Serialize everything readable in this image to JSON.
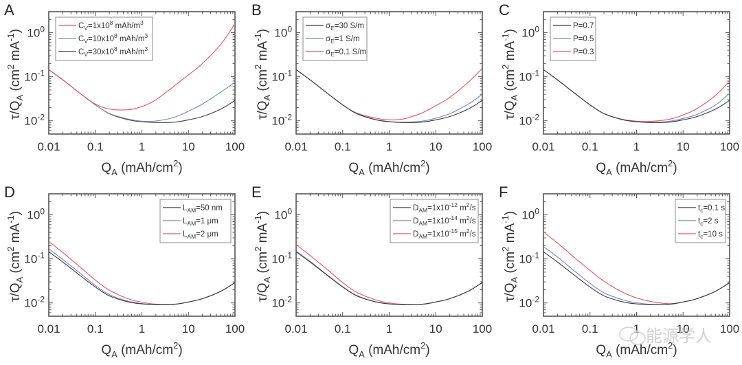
{
  "figure": {
    "watermark": "能源学人",
    "colors": {
      "black": "#3a3a3a",
      "blue": "#6f88c2",
      "red": "#e6535e",
      "axis": "#555555"
    }
  },
  "chart_data": [
    {
      "type": "line",
      "panel": "A",
      "xscale": "log",
      "yscale": "log",
      "xlabel": "Q_A (mAh/cm^2)",
      "ylabel": "τ/Q_A (cm^2 mA^-1)",
      "xlim": [
        0.01,
        100
      ],
      "ylim": [
        0.005,
        3
      ],
      "xticks": [
        "0.01",
        "0.1",
        "1",
        "10",
        "100"
      ],
      "yticks": [
        "10^-2",
        "10^-1",
        "10^0"
      ],
      "legend_position": "top-left",
      "x": [
        0.01,
        0.02,
        0.05,
        0.1,
        0.2,
        0.5,
        1,
        2,
        5,
        10,
        20,
        50,
        100
      ],
      "series": [
        {
          "name": "C_V=1x10^8 mAh/m^3",
          "label_main": "C",
          "label_sub": "V",
          "label_rest": "=1x10",
          "label_sup": "8",
          "label_tail": " mAh/m",
          "label_sup2": "3",
          "color": "red",
          "values": [
            0.145,
            0.085,
            0.04,
            0.024,
            0.0185,
            0.0178,
            0.021,
            0.03,
            0.062,
            0.11,
            0.2,
            0.55,
            1.6
          ]
        },
        {
          "name": "C_V=10x10^8 mAh/m^3",
          "label_main": "C",
          "label_sub": "V",
          "label_rest": "=10x10",
          "label_sup": "8",
          "label_tail": " mAh/m",
          "label_sup2": "3",
          "color": "blue",
          "values": [
            0.145,
            0.085,
            0.04,
            0.023,
            0.0147,
            0.011,
            0.0098,
            0.0099,
            0.012,
            0.0165,
            0.024,
            0.045,
            0.075
          ]
        },
        {
          "name": "C_V=30x10^8 mAh/m^3",
          "label_main": "C",
          "label_sub": "V",
          "label_rest": "=30x10",
          "label_sup": "8",
          "label_tail": " mAh/m",
          "label_sup2": "3",
          "color": "black",
          "values": [
            0.145,
            0.085,
            0.04,
            0.023,
            0.0145,
            0.0106,
            0.0095,
            0.0091,
            0.0093,
            0.0105,
            0.0125,
            0.0185,
            0.029
          ]
        }
      ]
    },
    {
      "type": "line",
      "panel": "B",
      "xscale": "log",
      "yscale": "log",
      "xlabel": "Q_A (mAh/cm^2)",
      "ylabel": "τ/Q_A (cm^2 mA^-1)",
      "xlim": [
        0.01,
        100
      ],
      "ylim": [
        0.005,
        3
      ],
      "xticks": [
        "0.01",
        "0.1",
        "1",
        "10",
        "100"
      ],
      "yticks": [
        "10^-2",
        "10^-1",
        "10^0"
      ],
      "legend_position": "top-left",
      "x": [
        0.01,
        0.02,
        0.05,
        0.1,
        0.2,
        0.5,
        1,
        2,
        5,
        10,
        20,
        50,
        100
      ],
      "series": [
        {
          "name": "σ_E=30 S/m",
          "label_main": "σ",
          "label_sub": "E",
          "label_rest": "=30 S/m",
          "label_sup": "",
          "label_tail": "",
          "label_sup2": "",
          "color": "black",
          "values": [
            0.145,
            0.085,
            0.04,
            0.023,
            0.0145,
            0.0106,
            0.0095,
            0.0091,
            0.0093,
            0.0105,
            0.0125,
            0.0185,
            0.029
          ]
        },
        {
          "name": "σ_E=1 S/m",
          "label_main": "σ",
          "label_sub": "E",
          "label_rest": "=1 S/m",
          "label_sup": "",
          "label_tail": "",
          "label_sup2": "",
          "color": "blue",
          "values": [
            0.145,
            0.085,
            0.04,
            0.023,
            0.0146,
            0.0107,
            0.0096,
            0.0093,
            0.0098,
            0.0115,
            0.0145,
            0.024,
            0.04
          ]
        },
        {
          "name": "σ_E=0.1 S/m",
          "label_main": "σ",
          "label_sub": "E",
          "label_rest": "=0.1 S/m",
          "label_sup": "",
          "label_tail": "",
          "label_sup2": "",
          "color": "red",
          "values": [
            0.145,
            0.085,
            0.04,
            0.023,
            0.015,
            0.0115,
            0.0105,
            0.011,
            0.015,
            0.022,
            0.034,
            0.075,
            0.155
          ]
        }
      ]
    },
    {
      "type": "line",
      "panel": "C",
      "xscale": "log",
      "yscale": "log",
      "xlabel": "Q_A (mAh/cm^2)",
      "ylabel": "τ/Q_A (cm^2 mA^-1)",
      "xlim": [
        0.01,
        100
      ],
      "ylim": [
        0.005,
        3
      ],
      "xticks": [
        "0.01",
        "0.1",
        "1",
        "10",
        "100"
      ],
      "yticks": [
        "10^-2",
        "10^-1",
        "10^0"
      ],
      "legend_position": "top-left",
      "x": [
        0.01,
        0.02,
        0.05,
        0.1,
        0.2,
        0.5,
        1,
        2,
        5,
        10,
        20,
        50,
        100
      ],
      "series": [
        {
          "name": "P=0.7",
          "label_main": "P=0.7",
          "label_sub": "",
          "label_rest": "",
          "label_sup": "",
          "label_tail": "",
          "label_sup2": "",
          "color": "black",
          "values": [
            0.145,
            0.085,
            0.04,
            0.023,
            0.0145,
            0.0106,
            0.0095,
            0.0091,
            0.0093,
            0.0105,
            0.0125,
            0.0185,
            0.029
          ]
        },
        {
          "name": "P=0.5",
          "label_main": "P=0.5",
          "label_sub": "",
          "label_rest": "",
          "label_sup": "",
          "label_tail": "",
          "label_sup2": "",
          "color": "blue",
          "values": [
            0.145,
            0.085,
            0.04,
            0.023,
            0.0145,
            0.0106,
            0.0095,
            0.0092,
            0.0097,
            0.0113,
            0.014,
            0.023,
            0.042
          ]
        },
        {
          "name": "P=0.3",
          "label_main": "P=0.3",
          "label_sub": "",
          "label_rest": "",
          "label_sup": "",
          "label_tail": "",
          "label_sup2": "",
          "color": "red",
          "values": [
            0.145,
            0.085,
            0.04,
            0.023,
            0.0146,
            0.0108,
            0.0098,
            0.0097,
            0.0108,
            0.0135,
            0.019,
            0.038,
            0.08
          ]
        }
      ]
    },
    {
      "type": "line",
      "panel": "D",
      "xscale": "log",
      "yscale": "log",
      "xlabel": "Q_A (mAh/cm^2)",
      "ylabel": "τ/Q_A (cm^2 mA^-1)",
      "xlim": [
        0.01,
        100
      ],
      "ylim": [
        0.005,
        3
      ],
      "xticks": [
        "0.01",
        "0.1",
        "1",
        "10",
        "100"
      ],
      "yticks": [
        "10^-2",
        "10^-1",
        "10^0"
      ],
      "legend_position": "top-right",
      "x": [
        0.01,
        0.02,
        0.05,
        0.1,
        0.2,
        0.5,
        1,
        2,
        5,
        10,
        20,
        50,
        100
      ],
      "series": [
        {
          "name": "L_AM=50 nm",
          "label_main": "L",
          "label_sub": "AM",
          "label_rest": "=50 nm",
          "label_sup": "",
          "label_tail": "",
          "label_sup2": "",
          "color": "black",
          "values": [
            0.145,
            0.085,
            0.04,
            0.023,
            0.0145,
            0.0106,
            0.0095,
            0.0091,
            0.0093,
            0.0105,
            0.0125,
            0.0185,
            0.029
          ]
        },
        {
          "name": "L_AM=1 μm",
          "label_main": "L",
          "label_sub": "AM",
          "label_rest": "=1 μm",
          "label_sup": "",
          "label_tail": "",
          "label_sup2": "",
          "color": "blue",
          "values": [
            0.17,
            0.097,
            0.045,
            0.025,
            0.0155,
            0.011,
            0.0097,
            0.0092,
            0.0093,
            0.0105,
            0.0125,
            0.0185,
            0.029
          ]
        },
        {
          "name": "L_AM=2 μm",
          "label_main": "L",
          "label_sub": "AM",
          "label_rest": "=2 μm",
          "label_sup": "",
          "label_tail": "",
          "label_sup2": "",
          "color": "red",
          "values": [
            0.25,
            0.14,
            0.062,
            0.033,
            0.0195,
            0.0125,
            0.0104,
            0.0094,
            0.0094,
            0.0105,
            0.0125,
            0.0185,
            0.029
          ]
        }
      ]
    },
    {
      "type": "line",
      "panel": "E",
      "xscale": "log",
      "yscale": "log",
      "xlabel": "Q_A (mAh/cm^2)",
      "ylabel": "τ/Q_A (cm^2 mA^-1)",
      "xlim": [
        0.01,
        100
      ],
      "ylim": [
        0.005,
        3
      ],
      "xticks": [
        "0.01",
        "0.1",
        "1",
        "10",
        "100"
      ],
      "yticks": [
        "10^-2",
        "10^-1",
        "10^0"
      ],
      "legend_position": "top-right",
      "x": [
        0.01,
        0.02,
        0.05,
        0.1,
        0.2,
        0.5,
        1,
        2,
        5,
        10,
        20,
        50,
        100
      ],
      "series": [
        {
          "name": "D_AM=1x10^-12 m^2/s",
          "label_main": "D",
          "label_sub": "AM",
          "label_rest": "=1x10",
          "label_sup": "-12",
          "label_tail": " m",
          "label_sup2": "2",
          "label_end": "/s",
          "color": "black",
          "values": [
            0.145,
            0.085,
            0.04,
            0.023,
            0.0145,
            0.0106,
            0.0095,
            0.0091,
            0.0093,
            0.0105,
            0.0125,
            0.0185,
            0.029
          ]
        },
        {
          "name": "D_AM=1x10^-14 m^2/s",
          "label_main": "D",
          "label_sub": "AM",
          "label_rest": "=1x10",
          "label_sup": "-14",
          "label_tail": " m",
          "label_sup2": "2",
          "label_end": "/s",
          "color": "blue",
          "values": [
            0.15,
            0.088,
            0.041,
            0.0235,
            0.0148,
            0.0107,
            0.0095,
            0.0091,
            0.0093,
            0.0105,
            0.0125,
            0.0185,
            0.029
          ]
        },
        {
          "name": "D_AM=1x10^-15 m^2/s",
          "label_main": "D",
          "label_sub": "AM",
          "label_rest": "=1x10",
          "label_sup": "-15",
          "label_tail": " m",
          "label_sup2": "2",
          "label_end": "/s",
          "color": "red",
          "values": [
            0.21,
            0.12,
            0.054,
            0.029,
            0.0175,
            0.0118,
            0.01,
            0.0093,
            0.0093,
            0.0105,
            0.0125,
            0.0185,
            0.029
          ]
        }
      ]
    },
    {
      "type": "line",
      "panel": "F",
      "xscale": "log",
      "yscale": "log",
      "xlabel": "Q_A (mAh/cm^2)",
      "ylabel": "τ/Q_A (cm^2 mA^-1)",
      "xlim": [
        0.01,
        100
      ],
      "ylim": [
        0.005,
        3
      ],
      "xticks": [
        "0.01",
        "0.1",
        "1",
        "10",
        "100"
      ],
      "yticks": [
        "10^-2",
        "10^-1",
        "10^0"
      ],
      "legend_position": "top-right",
      "x": [
        0.01,
        0.02,
        0.05,
        0.1,
        0.2,
        0.5,
        1,
        2,
        5,
        10,
        20,
        50,
        100
      ],
      "series": [
        {
          "name": "t_c=0.1 s",
          "label_main": "t",
          "label_sub": "c",
          "label_rest": "=0.1 s",
          "label_sup": "",
          "label_tail": "",
          "label_sup2": "",
          "color": "black",
          "values": [
            0.145,
            0.085,
            0.04,
            0.023,
            0.0145,
            0.0106,
            0.0095,
            0.0091,
            0.0093,
            0.0105,
            0.0125,
            0.0185,
            0.029
          ]
        },
        {
          "name": "t_c=2 s",
          "label_main": "t",
          "label_sub": "c",
          "label_rest": "=2 s",
          "label_sup": "",
          "label_tail": "",
          "label_sup2": "",
          "color": "blue",
          "values": [
            0.19,
            0.11,
            0.05,
            0.028,
            0.017,
            0.0118,
            0.0101,
            0.0093,
            0.0093,
            0.0105,
            0.0125,
            0.0185,
            0.029
          ]
        },
        {
          "name": "t_c=10 s",
          "label_main": "t",
          "label_sub": "c",
          "label_rest": "=10 s",
          "label_sup": "",
          "label_tail": "",
          "label_sup2": "",
          "color": "red",
          "values": [
            0.41,
            0.23,
            0.1,
            0.055,
            0.031,
            0.0175,
            0.013,
            0.0108,
            0.0096,
            0.0105,
            0.0125,
            0.0185,
            0.029
          ]
        }
      ]
    }
  ]
}
